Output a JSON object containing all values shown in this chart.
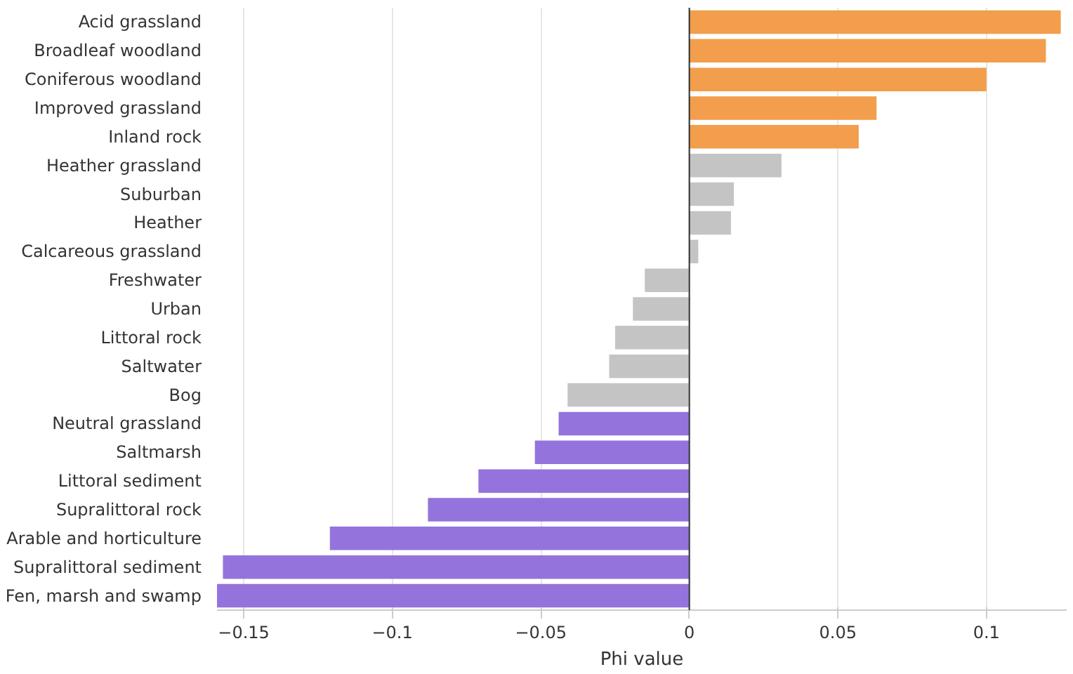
{
  "chart_data": {
    "type": "bar",
    "orientation": "horizontal",
    "xlabel": "Phi value",
    "categories": [
      "Acid grassland",
      "Broadleaf woodland",
      "Coniferous woodland",
      "Improved grassland",
      "Inland rock",
      "Heather grassland",
      "Suburban",
      "Heather",
      "Calcareous grassland",
      "Freshwater",
      "Urban",
      "Littoral rock",
      "Saltwater",
      "Bog",
      "Neutral grassland",
      "Saltmarsh",
      "Littoral sediment",
      "Supralittoral rock",
      "Arable and horticulture",
      "Supralittoral sediment",
      "Fen, marsh and swamp"
    ],
    "values": [
      0.125,
      0.12,
      0.1,
      0.063,
      0.057,
      0.031,
      0.015,
      0.014,
      0.003,
      -0.015,
      -0.019,
      -0.025,
      -0.027,
      -0.041,
      -0.044,
      -0.052,
      -0.071,
      -0.088,
      -0.121,
      -0.157,
      -0.159
    ],
    "colors": [
      "#f29e4c",
      "#f29e4c",
      "#f29e4c",
      "#f29e4c",
      "#f29e4c",
      "#c4c4c4",
      "#c4c4c4",
      "#c4c4c4",
      "#c4c4c4",
      "#c4c4c4",
      "#c4c4c4",
      "#c4c4c4",
      "#c4c4c4",
      "#c4c4c4",
      "#9474dc",
      "#9474dc",
      "#9474dc",
      "#9474dc",
      "#9474dc",
      "#9474dc",
      "#9474dc"
    ],
    "xlim": [
      -0.159,
      0.127
    ],
    "xticks": [
      {
        "value": -0.15,
        "label": "−0.15"
      },
      {
        "value": -0.1,
        "label": "−0.1"
      },
      {
        "value": -0.05,
        "label": "−0.05"
      },
      0,
      0.05,
      0.1
    ],
    "grid": "x"
  }
}
